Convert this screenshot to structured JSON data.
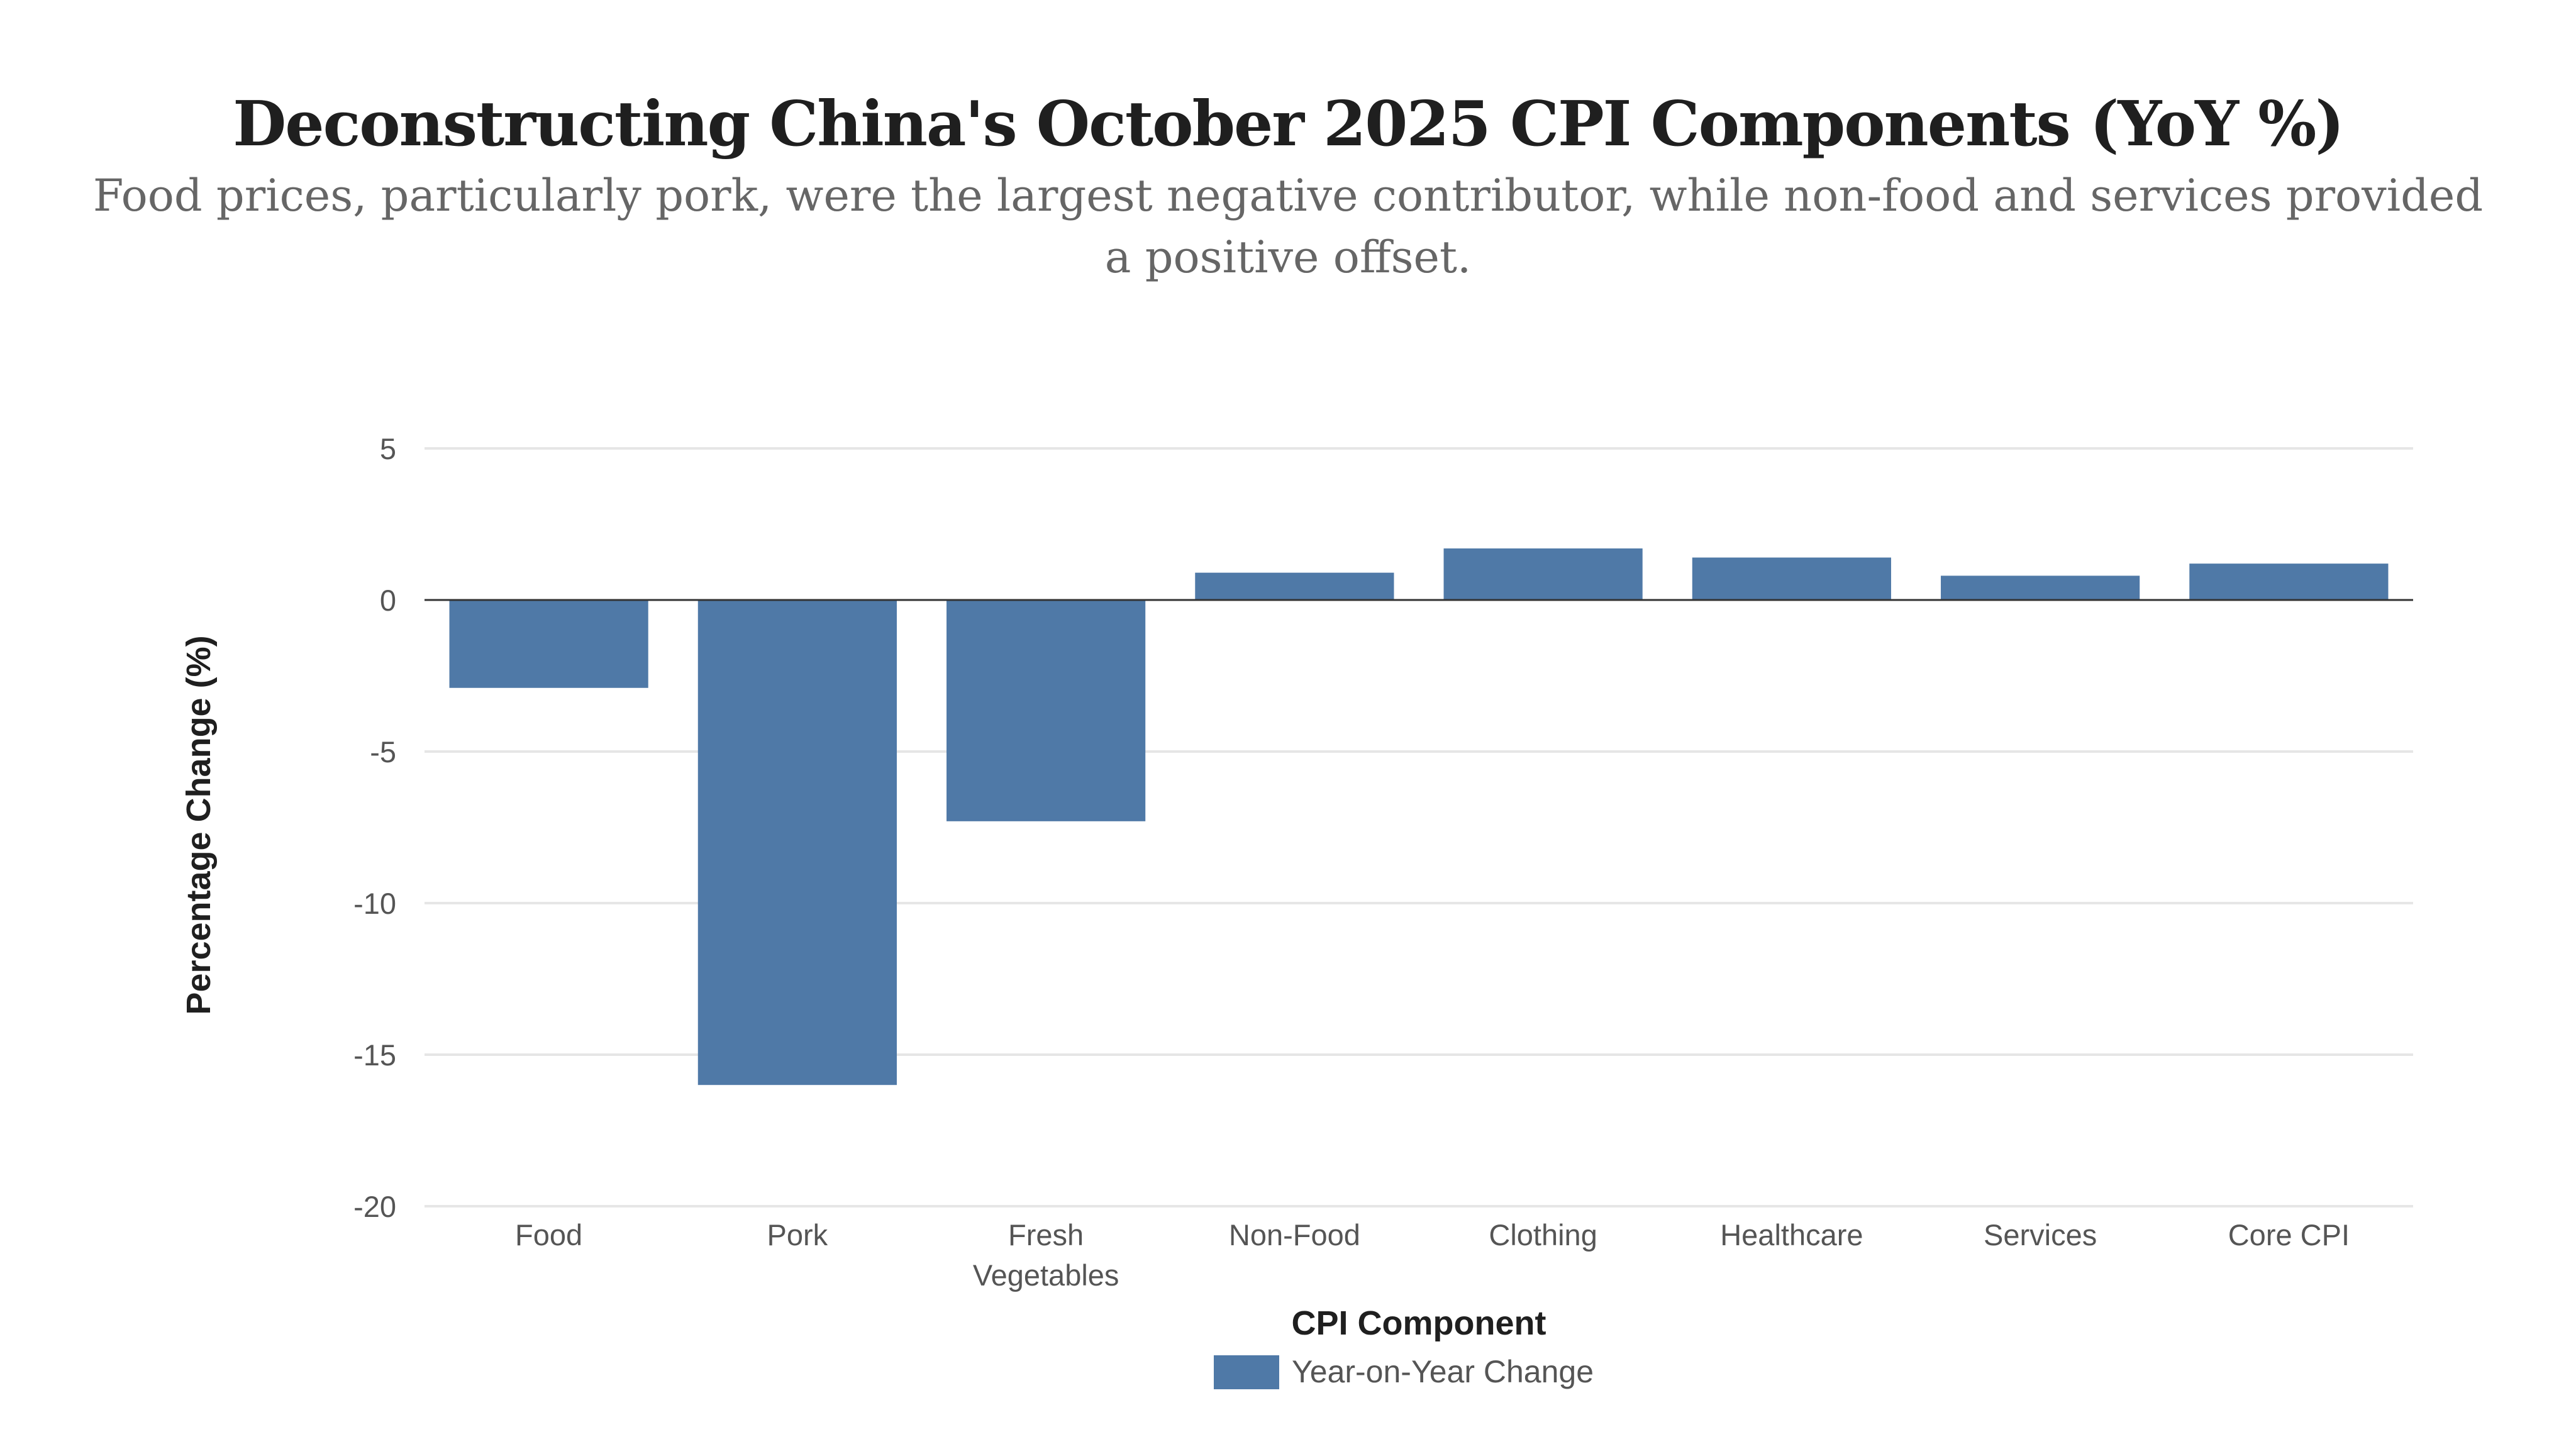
{
  "title": "Deconstructing China's October 2025 CPI Components (YoY %)",
  "subtitle": "Food prices, particularly pork, were the largest negative contributor, while non-food and services provided a positive offset.",
  "colors": {
    "bar": "#4f79a7",
    "grid": "#e6e6e6",
    "zero_line": "#333333"
  },
  "chart_data": {
    "type": "bar",
    "title": "Deconstructing China's October 2025 CPI Components (YoY %)",
    "categories": [
      "Food",
      "Pork",
      "Fresh Vegetables",
      "Non-Food",
      "Clothing",
      "Healthcare",
      "Services",
      "Core CPI"
    ],
    "category_lines": [
      [
        "Food"
      ],
      [
        "Pork"
      ],
      [
        "Fresh",
        "Vegetables"
      ],
      [
        "Non-Food"
      ],
      [
        "Clothing"
      ],
      [
        "Healthcare"
      ],
      [
        "Services"
      ],
      [
        "Core CPI"
      ]
    ],
    "series": [
      {
        "name": "Year-on-Year Change",
        "values": [
          -2.9,
          -16.0,
          -7.3,
          0.9,
          1.7,
          1.4,
          0.8,
          1.2
        ]
      }
    ],
    "xlabel": "CPI Component",
    "ylabel": "Percentage Change (%)",
    "ylim": [
      -20,
      5
    ],
    "yticks": [
      5,
      0,
      -5,
      -10,
      -15,
      -20
    ],
    "grid": true,
    "legend": "bottom-center"
  }
}
